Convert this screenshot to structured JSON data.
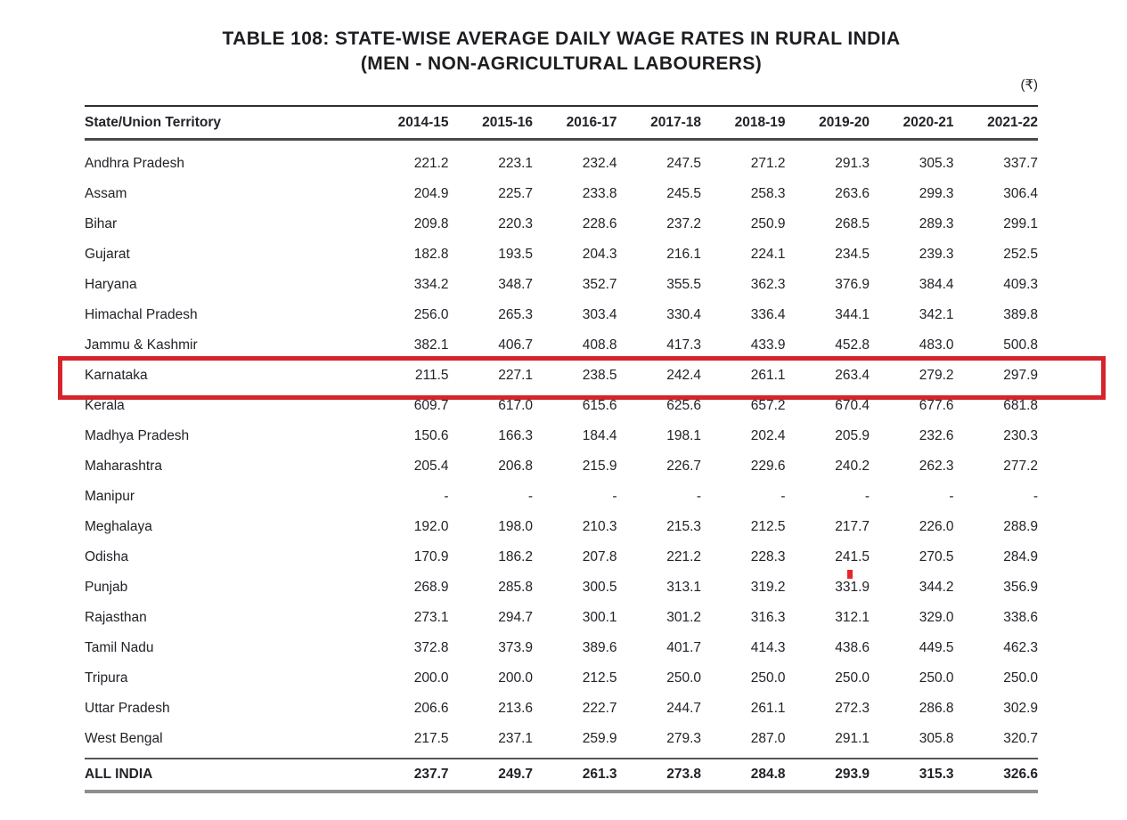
{
  "page": {
    "title_line1": "TABLE 108: STATE-WISE AVERAGE DAILY WAGE RATES IN RURAL INDIA",
    "title_line2": "(MEN - NON-AGRICULTURAL LABOURERS)",
    "currency_note": "(₹)"
  },
  "colors": {
    "highlight_red": "#d5242b",
    "artifact_red": "#e9242c",
    "text": "#232228"
  },
  "table": {
    "columns": [
      "State/Union Territory",
      "2014-15",
      "2015-16",
      "2016-17",
      "2017-18",
      "2018-19",
      "2019-20",
      "2020-21",
      "2021-22"
    ],
    "rows": [
      {
        "state": "Andhra Pradesh",
        "values": [
          "221.2",
          "223.1",
          "232.4",
          "247.5",
          "271.2",
          "291.3",
          "305.3",
          "337.7"
        ],
        "highlighted": false
      },
      {
        "state": "Assam",
        "values": [
          "204.9",
          "225.7",
          "233.8",
          "245.5",
          "258.3",
          "263.6",
          "299.3",
          "306.4"
        ],
        "highlighted": false
      },
      {
        "state": "Bihar",
        "values": [
          "209.8",
          "220.3",
          "228.6",
          "237.2",
          "250.9",
          "268.5",
          "289.3",
          "299.1"
        ],
        "highlighted": false
      },
      {
        "state": "Gujarat",
        "values": [
          "182.8",
          "193.5",
          "204.3",
          "216.1",
          "224.1",
          "234.5",
          "239.3",
          "252.5"
        ],
        "highlighted": false
      },
      {
        "state": "Haryana",
        "values": [
          "334.2",
          "348.7",
          "352.7",
          "355.5",
          "362.3",
          "376.9",
          "384.4",
          "409.3"
        ],
        "highlighted": false
      },
      {
        "state": "Himachal Pradesh",
        "values": [
          "256.0",
          "265.3",
          "303.4",
          "330.4",
          "336.4",
          "344.1",
          "342.1",
          "389.8"
        ],
        "highlighted": false
      },
      {
        "state": "Jammu & Kashmir",
        "values": [
          "382.1",
          "406.7",
          "408.8",
          "417.3",
          "433.9",
          "452.8",
          "483.0",
          "500.8"
        ],
        "highlighted": false
      },
      {
        "state": "Karnataka",
        "values": [
          "211.5",
          "227.1",
          "238.5",
          "242.4",
          "261.1",
          "263.4",
          "279.2",
          "297.9"
        ],
        "highlighted": true
      },
      {
        "state": "Kerala",
        "values": [
          "609.7",
          "617.0",
          "615.6",
          "625.6",
          "657.2",
          "670.4",
          "677.6",
          "681.8"
        ],
        "highlighted": false
      },
      {
        "state": "Madhya Pradesh",
        "values": [
          "150.6",
          "166.3",
          "184.4",
          "198.1",
          "202.4",
          "205.9",
          "232.6",
          "230.3"
        ],
        "highlighted": false
      },
      {
        "state": "Maharashtra",
        "values": [
          "205.4",
          "206.8",
          "215.9",
          "226.7",
          "229.6",
          "240.2",
          "262.3",
          "277.2"
        ],
        "highlighted": false
      },
      {
        "state": "Manipur",
        "values": [
          "-",
          "-",
          "-",
          "-",
          "-",
          "-",
          "-",
          "-"
        ],
        "highlighted": false
      },
      {
        "state": "Meghalaya",
        "values": [
          "192.0",
          "198.0",
          "210.3",
          "215.3",
          "212.5",
          "217.7",
          "226.0",
          "288.9"
        ],
        "highlighted": false
      },
      {
        "state": "Odisha",
        "values": [
          "170.9",
          "186.2",
          "207.8",
          "221.2",
          "228.3",
          "241.5",
          "270.5",
          "284.9"
        ],
        "highlighted": false
      },
      {
        "state": "Punjab",
        "values": [
          "268.9",
          "285.8",
          "300.5",
          "313.1",
          "319.2",
          "331.9",
          "344.2",
          "356.9"
        ],
        "highlighted": false
      },
      {
        "state": "Rajasthan",
        "values": [
          "273.1",
          "294.7",
          "300.1",
          "301.2",
          "316.3",
          "312.1",
          "329.0",
          "338.6"
        ],
        "highlighted": false
      },
      {
        "state": "Tamil Nadu",
        "values": [
          "372.8",
          "373.9",
          "389.6",
          "401.7",
          "414.3",
          "438.6",
          "449.5",
          "462.3"
        ],
        "highlighted": false
      },
      {
        "state": "Tripura",
        "values": [
          "200.0",
          "200.0",
          "212.5",
          "250.0",
          "250.0",
          "250.0",
          "250.0",
          "250.0"
        ],
        "highlighted": false
      },
      {
        "state": "Uttar Pradesh",
        "values": [
          "206.6",
          "213.6",
          "222.7",
          "244.7",
          "261.1",
          "272.3",
          "286.8",
          "302.9"
        ],
        "highlighted": false
      },
      {
        "state": "West Bengal",
        "values": [
          "217.5",
          "237.1",
          "259.9",
          "279.3",
          "287.0",
          "291.1",
          "305.8",
          "320.7"
        ],
        "highlighted": false
      }
    ],
    "footer": {
      "state": "ALL INDIA",
      "values": [
        "237.7",
        "249.7",
        "261.3",
        "273.8",
        "284.8",
        "293.9",
        "315.3",
        "326.6"
      ]
    }
  }
}
